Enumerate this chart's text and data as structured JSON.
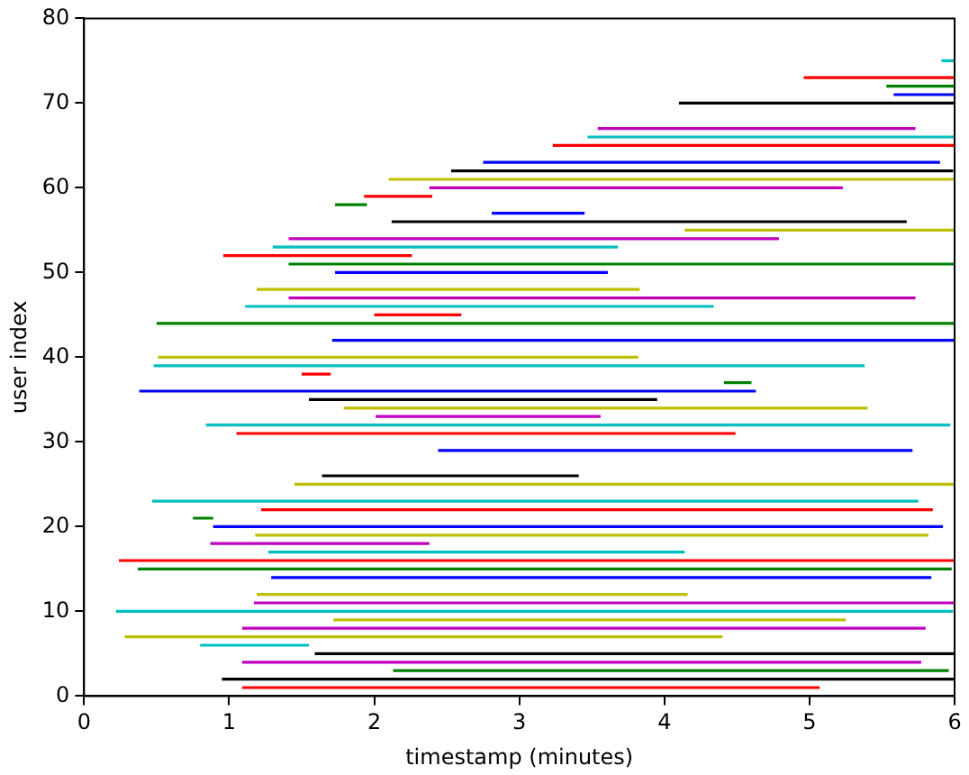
{
  "chart_data": {
    "type": "line",
    "xlabel": "timestamp (minutes)",
    "ylabel": "user index",
    "xlim": [
      0,
      6
    ],
    "ylim": [
      0,
      80
    ],
    "xticks": [
      0,
      1,
      2,
      3,
      4,
      5,
      6
    ],
    "yticks": [
      0,
      10,
      20,
      30,
      40,
      50,
      60,
      70,
      80
    ],
    "grid": false,
    "legend": false,
    "marker": "none",
    "line_style": "solid",
    "series": [
      {
        "color": "#ff0000",
        "x": [
          1.09,
          5.07
        ],
        "values": [
          1,
          1
        ]
      },
      {
        "color": "#000000",
        "x": [
          0.95,
          6.0
        ],
        "values": [
          2,
          2
        ]
      },
      {
        "color": "#008000",
        "x": [
          2.13,
          5.96
        ],
        "values": [
          3,
          3
        ]
      },
      {
        "color": "#bf00bf",
        "x": [
          1.09,
          5.77
        ],
        "values": [
          4,
          4
        ]
      },
      {
        "color": "#000000",
        "x": [
          1.59,
          6.0
        ],
        "values": [
          5,
          5
        ]
      },
      {
        "color": "#00bfbf",
        "x": [
          0.8,
          1.55
        ],
        "values": [
          6,
          6
        ]
      },
      {
        "color": "#bfbf00",
        "x": [
          0.28,
          4.4
        ],
        "values": [
          7,
          7
        ]
      },
      {
        "color": "#bf00bf",
        "x": [
          1.09,
          5.8
        ],
        "values": [
          8,
          8
        ]
      },
      {
        "color": "#bfbf00",
        "x": [
          1.72,
          5.25
        ],
        "values": [
          9,
          9
        ]
      },
      {
        "color": "#00bfbf",
        "x": [
          0.22,
          5.99
        ],
        "values": [
          10,
          10
        ]
      },
      {
        "color": "#bf00bf",
        "x": [
          1.17,
          6.0
        ],
        "values": [
          11,
          11
        ]
      },
      {
        "color": "#bfbf00",
        "x": [
          1.19,
          4.16
        ],
        "values": [
          12,
          12
        ]
      },
      {
        "color": "#0000ff",
        "x": [
          1.29,
          5.84
        ],
        "values": [
          14,
          14
        ]
      },
      {
        "color": "#008000",
        "x": [
          0.37,
          5.98
        ],
        "values": [
          15,
          15
        ]
      },
      {
        "color": "#ff0000",
        "x": [
          0.24,
          6.0
        ],
        "values": [
          16,
          16
        ]
      },
      {
        "color": "#00bfbf",
        "x": [
          1.27,
          4.14
        ],
        "values": [
          17,
          17
        ]
      },
      {
        "color": "#bf00bf",
        "x": [
          0.87,
          2.38
        ],
        "values": [
          18,
          18
        ]
      },
      {
        "color": "#bfbf00",
        "x": [
          1.18,
          5.82
        ],
        "values": [
          19,
          19
        ]
      },
      {
        "color": "#0000ff",
        "x": [
          0.89,
          5.92
        ],
        "values": [
          20,
          20
        ]
      },
      {
        "color": "#008000",
        "x": [
          0.75,
          0.89
        ],
        "values": [
          21,
          21
        ]
      },
      {
        "color": "#ff0000",
        "x": [
          1.22,
          5.85
        ],
        "values": [
          22,
          22
        ]
      },
      {
        "color": "#00bfbf",
        "x": [
          0.47,
          5.75
        ],
        "values": [
          23,
          23
        ]
      },
      {
        "color": "#bfbf00",
        "x": [
          1.45,
          6.0
        ],
        "values": [
          25,
          25
        ]
      },
      {
        "color": "#000000",
        "x": [
          1.64,
          3.41
        ],
        "values": [
          26,
          26
        ]
      },
      {
        "color": "#0000ff",
        "x": [
          2.44,
          5.71
        ],
        "values": [
          29,
          29
        ]
      },
      {
        "color": "#ff0000",
        "x": [
          1.05,
          4.49
        ],
        "values": [
          31,
          31
        ]
      },
      {
        "color": "#00bfbf",
        "x": [
          0.84,
          5.97
        ],
        "values": [
          32,
          32
        ]
      },
      {
        "color": "#bf00bf",
        "x": [
          2.01,
          3.56
        ],
        "values": [
          33,
          33
        ]
      },
      {
        "color": "#bfbf00",
        "x": [
          1.79,
          5.4
        ],
        "values": [
          34,
          34
        ]
      },
      {
        "color": "#000000",
        "x": [
          1.55,
          3.95
        ],
        "values": [
          35,
          35
        ]
      },
      {
        "color": "#0000ff",
        "x": [
          0.38,
          4.63
        ],
        "values": [
          36,
          36
        ]
      },
      {
        "color": "#008000",
        "x": [
          4.41,
          4.6
        ],
        "values": [
          37,
          37
        ]
      },
      {
        "color": "#ff0000",
        "x": [
          1.5,
          1.7
        ],
        "values": [
          38,
          38
        ]
      },
      {
        "color": "#00bfbf",
        "x": [
          0.48,
          5.38
        ],
        "values": [
          39,
          39
        ]
      },
      {
        "color": "#bfbf00",
        "x": [
          0.51,
          3.82
        ],
        "values": [
          40,
          40
        ]
      },
      {
        "color": "#0000ff",
        "x": [
          1.71,
          6.0
        ],
        "values": [
          42,
          42
        ]
      },
      {
        "color": "#008000",
        "x": [
          0.5,
          6.0
        ],
        "values": [
          44,
          44
        ]
      },
      {
        "color": "#ff0000",
        "x": [
          2.0,
          2.6
        ],
        "values": [
          45,
          45
        ]
      },
      {
        "color": "#00bfbf",
        "x": [
          1.11,
          4.34
        ],
        "values": [
          46,
          46
        ]
      },
      {
        "color": "#bf00bf",
        "x": [
          1.41,
          5.73
        ],
        "values": [
          47,
          47
        ]
      },
      {
        "color": "#bfbf00",
        "x": [
          1.19,
          3.83
        ],
        "values": [
          48,
          48
        ]
      },
      {
        "color": "#0000ff",
        "x": [
          1.73,
          3.61
        ],
        "values": [
          50,
          50
        ]
      },
      {
        "color": "#008000",
        "x": [
          1.41,
          6.0
        ],
        "values": [
          51,
          51
        ]
      },
      {
        "color": "#ff0000",
        "x": [
          0.96,
          2.26
        ],
        "values": [
          52,
          52
        ]
      },
      {
        "color": "#00bfbf",
        "x": [
          1.3,
          3.68
        ],
        "values": [
          53,
          53
        ]
      },
      {
        "color": "#bf00bf",
        "x": [
          1.41,
          4.79
        ],
        "values": [
          54,
          54
        ]
      },
      {
        "color": "#bfbf00",
        "x": [
          4.14,
          6.0
        ],
        "values": [
          55,
          55
        ]
      },
      {
        "color": "#000000",
        "x": [
          2.12,
          5.67
        ],
        "values": [
          56,
          56
        ]
      },
      {
        "color": "#0000ff",
        "x": [
          2.81,
          3.45
        ],
        "values": [
          57,
          57
        ]
      },
      {
        "color": "#008000",
        "x": [
          1.73,
          1.95
        ],
        "values": [
          58,
          58
        ]
      },
      {
        "color": "#ff0000",
        "x": [
          1.93,
          2.4
        ],
        "values": [
          59,
          59
        ]
      },
      {
        "color": "#bf00bf",
        "x": [
          2.38,
          5.23
        ],
        "values": [
          60,
          60
        ]
      },
      {
        "color": "#bfbf00",
        "x": [
          2.1,
          6.0
        ],
        "values": [
          61,
          61
        ]
      },
      {
        "color": "#000000",
        "x": [
          2.53,
          5.99
        ],
        "values": [
          62,
          62
        ]
      },
      {
        "color": "#0000ff",
        "x": [
          2.75,
          5.9
        ],
        "values": [
          63,
          63
        ]
      },
      {
        "color": "#ff0000",
        "x": [
          3.23,
          6.0
        ],
        "values": [
          65,
          65
        ]
      },
      {
        "color": "#00bfbf",
        "x": [
          3.47,
          6.0
        ],
        "values": [
          66,
          66
        ]
      },
      {
        "color": "#bf00bf",
        "x": [
          3.54,
          5.73
        ],
        "values": [
          67,
          67
        ]
      },
      {
        "color": "#000000",
        "x": [
          4.1,
          6.0
        ],
        "values": [
          70,
          70
        ]
      },
      {
        "color": "#0000ff",
        "x": [
          5.58,
          6.0
        ],
        "values": [
          71,
          71
        ]
      },
      {
        "color": "#008000",
        "x": [
          5.53,
          6.0
        ],
        "values": [
          72,
          72
        ]
      },
      {
        "color": "#ff0000",
        "x": [
          4.96,
          6.0
        ],
        "values": [
          73,
          73
        ]
      },
      {
        "color": "#00bfbf",
        "x": [
          5.91,
          6.0
        ],
        "values": [
          75,
          75
        ]
      }
    ]
  }
}
